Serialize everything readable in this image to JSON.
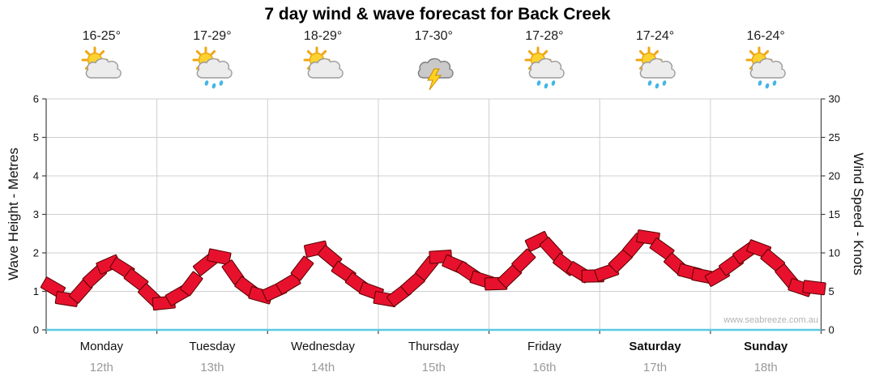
{
  "title": "7 day wind & wave forecast for Back Creek",
  "watermark": "www.seabreeze.com.au",
  "days": [
    {
      "name": "Monday",
      "date": "12th",
      "temp": "16-25°",
      "icon": "sun-cloud",
      "bold": false
    },
    {
      "name": "Tuesday",
      "date": "13th",
      "temp": "17-29°",
      "icon": "sun-cloud-rain",
      "bold": false
    },
    {
      "name": "Wednesday",
      "date": "14th",
      "temp": "18-29°",
      "icon": "sun-cloud",
      "bold": false
    },
    {
      "name": "Thursday",
      "date": "15th",
      "temp": "17-30°",
      "icon": "storm-cloud",
      "bold": false
    },
    {
      "name": "Friday",
      "date": "16th",
      "temp": "17-28°",
      "icon": "sun-cloud-rain",
      "bold": false
    },
    {
      "name": "Saturday",
      "date": "17th",
      "temp": "17-24°",
      "icon": "sun-cloud-rain",
      "bold": true
    },
    {
      "name": "Sunday",
      "date": "18th",
      "temp": "16-24°",
      "icon": "sun-cloud-rain",
      "bold": true
    }
  ],
  "chart_data": {
    "type": "line",
    "style": "wind-barbs",
    "categories": [
      "Monday 12th",
      "Tuesday 13th",
      "Wednesday 14th",
      "Thursday 15th",
      "Friday 16th",
      "Saturday 17th",
      "Sunday 18th"
    ],
    "series": [
      {
        "name": "Wind Speed",
        "unit": "knots",
        "points_per_day": 8,
        "values": [
          5.5,
          4.0,
          5.0,
          7.0,
          8.5,
          8.0,
          6.5,
          4.5,
          3.5,
          4.5,
          6.0,
          8.5,
          9.5,
          7.5,
          5.5,
          4.5,
          5.0,
          6.0,
          8.0,
          10.5,
          9.5,
          7.5,
          6.0,
          5.0,
          4.0,
          4.5,
          6.0,
          8.0,
          9.5,
          8.5,
          7.5,
          6.5,
          6.0,
          7.0,
          9.0,
          11.5,
          10.5,
          8.5,
          7.5,
          7.0,
          7.5,
          9.0,
          11.0,
          12.0,
          10.5,
          8.5,
          7.5,
          7.0,
          7.0,
          8.5,
          10.0,
          10.5,
          9.0,
          7.0,
          5.5,
          5.5
        ]
      }
    ],
    "left_axis": {
      "label": "Wave Height - Metres",
      "min": 0,
      "max": 6,
      "ticks": [
        0,
        1,
        2,
        3,
        4,
        5,
        6
      ]
    },
    "right_axis": {
      "label": "Wind Speed - Knots",
      "min": 0,
      "max": 30,
      "ticks": [
        0,
        5,
        10,
        15,
        20,
        25,
        30
      ]
    },
    "grid": true,
    "legend": "none",
    "colors": {
      "barb_fill": "#e8112d",
      "barb_stroke": "#550000",
      "grid": "#cfcfcf",
      "axis": "#444444",
      "baseline": "#5bc8e2"
    }
  }
}
